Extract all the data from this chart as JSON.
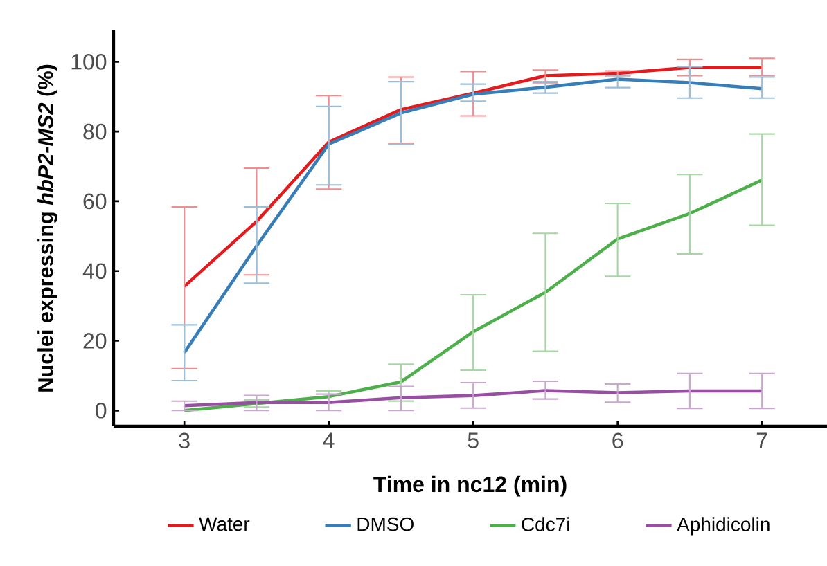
{
  "chart_data": {
    "type": "line",
    "xlabel": "Time in nc12 (min)",
    "ylabel": "Nuclei expressing *hbP2-MS2* (%)",
    "x": [
      3,
      3.5,
      4,
      4.5,
      5,
      5.5,
      6,
      6.5,
      7
    ],
    "xlim": [
      2.51,
      7.45
    ],
    "xticks": [
      3,
      4,
      5,
      6,
      7
    ],
    "ylim": [
      -4.5,
      109
    ],
    "yticks": [
      0,
      20,
      40,
      60,
      80,
      100
    ],
    "grid": false,
    "legend": "bottom",
    "marker": "none",
    "line_style": "solid",
    "series": [
      {
        "name": "Water",
        "color": "#e41a1c",
        "values": [
          35.6,
          54.2,
          77,
          86.3,
          91,
          96,
          96.7,
          98.4,
          98.4
        ],
        "errors": [
          [
            12,
            58.4
          ],
          [
            38.9,
            69.5
          ],
          [
            63.5,
            90.3
          ],
          [
            76.6,
            95.6
          ],
          [
            84.5,
            97.2
          ],
          [
            94,
            97.6
          ],
          [
            96,
            97.4
          ],
          [
            96,
            100.7
          ],
          [
            96,
            101
          ]
        ]
      },
      {
        "name": "DMSO",
        "color": "#377eb8",
        "values": [
          16.6,
          47.2,
          76.4,
          85.3,
          90.7,
          92.7,
          95,
          94,
          92.3
        ],
        "errors": [
          [
            8.6,
            24.6
          ],
          [
            36.5,
            58.4
          ],
          [
            64.7,
            87.2
          ],
          [
            76.4,
            94.3
          ],
          [
            88.7,
            93.6
          ],
          [
            91,
            94.3
          ],
          [
            92.6,
            96
          ],
          [
            89.6,
            98.6
          ],
          [
            89.6,
            95.6
          ]
        ]
      },
      {
        "name": "Cdc7i",
        "color": "#4daf4a",
        "values": [
          0,
          2,
          4,
          8.2,
          22.6,
          33.9,
          49.2,
          56.5,
          66.1
        ],
        "errors": [
          null,
          [
            1,
            3
          ],
          [
            2.5,
            5.6
          ],
          [
            2.7,
            13.3
          ],
          [
            11.6,
            33.2
          ],
          [
            17,
            50.8
          ],
          [
            38.5,
            59.4
          ],
          [
            44.9,
            67.7
          ],
          [
            53.1,
            79.3
          ]
        ]
      },
      {
        "name": "Aphidicolin",
        "color": "#984ea3",
        "values": [
          1.4,
          2.3,
          2.3,
          3.7,
          4.3,
          5.7,
          5.1,
          5.6,
          5.6
        ],
        "errors": [
          [
            0,
            2.7
          ],
          [
            0,
            4.3
          ],
          [
            0,
            4.7
          ],
          [
            0,
            6.9
          ],
          [
            0.7,
            8
          ],
          [
            3.3,
            8.4
          ],
          [
            2.4,
            7.6
          ],
          [
            0.6,
            10.6
          ],
          [
            0.6,
            10.6
          ]
        ]
      }
    ]
  }
}
